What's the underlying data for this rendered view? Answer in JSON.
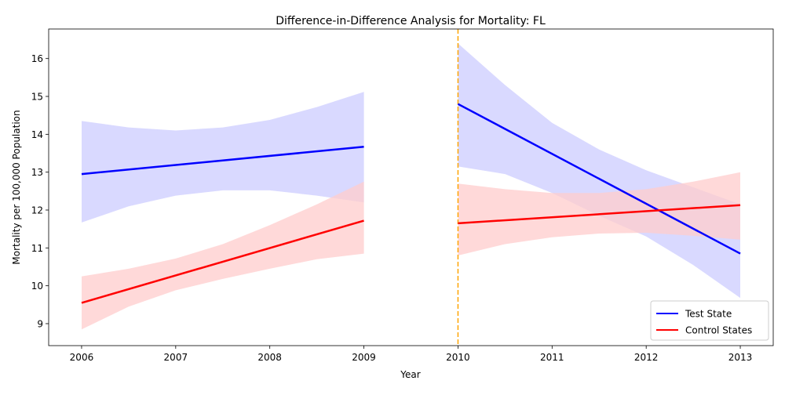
{
  "chart_data": {
    "type": "line",
    "title": "Difference-in-Difference Analysis for Mortality: FL",
    "xlabel": "Year",
    "ylabel": "Mortality per 100,000 Population",
    "xlim": [
      2005.65,
      2013.35
    ],
    "ylim": [
      8.42,
      16.78
    ],
    "x_ticks": [
      2006,
      2007,
      2008,
      2009,
      2010,
      2011,
      2012,
      2013
    ],
    "y_ticks": [
      9,
      10,
      11,
      12,
      13,
      14,
      15,
      16
    ],
    "intervention_x": 2010,
    "legend": {
      "position": "bottom-right"
    },
    "series": [
      {
        "name": "Test State",
        "color": "#0000ff",
        "band_color": "#ccccff",
        "segments": [
          {
            "x": [
              2006,
              2009
            ],
            "y": [
              12.95,
              13.67
            ],
            "band": {
              "x": [
                2006,
                2006.5,
                2007,
                2007.5,
                2008,
                2008.5,
                2009
              ],
              "upper": [
                14.35,
                14.18,
                14.1,
                14.18,
                14.38,
                14.72,
                15.12
              ],
              "lower": [
                11.67,
                12.1,
                12.38,
                12.52,
                12.52,
                12.38,
                12.2
              ]
            }
          },
          {
            "x": [
              2010,
              2013
            ],
            "y": [
              14.8,
              10.85
            ],
            "band": {
              "x": [
                2010,
                2010.5,
                2011,
                2011.5,
                2012,
                2012.5,
                2013
              ],
              "upper": [
                16.4,
                15.3,
                14.3,
                13.6,
                13.05,
                12.6,
                12.15
              ],
              "lower": [
                13.15,
                12.95,
                12.45,
                11.85,
                11.3,
                10.55,
                9.68
              ]
            }
          }
        ]
      },
      {
        "name": "Control States",
        "color": "#ff0000",
        "band_color": "#ffcccc",
        "segments": [
          {
            "x": [
              2006,
              2009
            ],
            "y": [
              9.55,
              11.72
            ],
            "band": {
              "x": [
                2006,
                2006.5,
                2007,
                2007.5,
                2008,
                2008.5,
                2009
              ],
              "upper": [
                10.25,
                10.45,
                10.72,
                11.1,
                11.6,
                12.15,
                12.75
              ],
              "lower": [
                8.85,
                9.45,
                9.88,
                10.18,
                10.45,
                10.7,
                10.85
              ]
            }
          },
          {
            "x": [
              2010,
              2013
            ],
            "y": [
              11.65,
              12.13
            ],
            "band": {
              "x": [
                2010,
                2010.5,
                2011,
                2011.5,
                2012,
                2012.5,
                2013
              ],
              "upper": [
                12.7,
                12.55,
                12.45,
                12.45,
                12.55,
                12.75,
                13.0
              ],
              "lower": [
                10.8,
                11.1,
                11.28,
                11.38,
                11.4,
                11.32,
                11.22
              ]
            }
          }
        ]
      }
    ]
  }
}
